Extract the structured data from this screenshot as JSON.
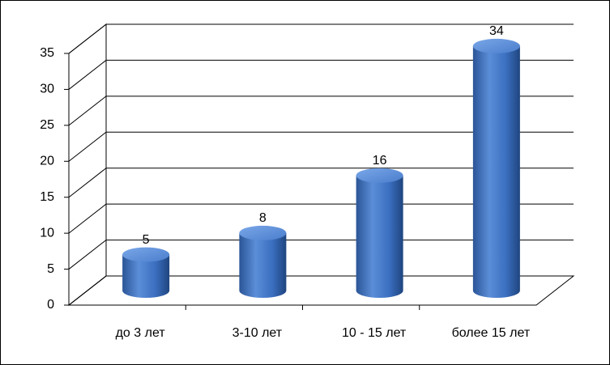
{
  "chart_data": {
    "type": "bar3d",
    "categories": [
      "до 3 лет",
      "3-10 лет",
      "10 - 15 лет",
      "более 15 лет"
    ],
    "values": [
      5,
      8,
      16,
      34
    ],
    "color": "#3b6fc0",
    "ylim": [
      0,
      35
    ],
    "yticks": [
      0,
      5,
      10,
      15,
      20,
      25,
      30,
      35
    ],
    "grid": true
  }
}
